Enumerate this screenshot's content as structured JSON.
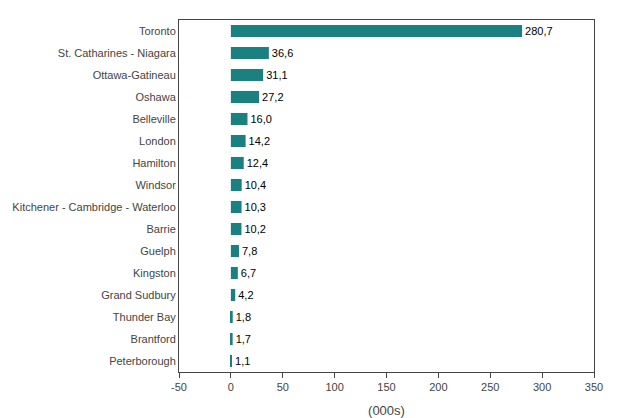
{
  "chart_data": {
    "type": "bar",
    "orientation": "horizontal",
    "categories": [
      "Toronto",
      "St. Catharines - Niagara",
      "Ottawa-Gatineau",
      "Oshawa",
      "Belleville",
      "London",
      "Hamilton",
      "Windsor",
      "Kitchener - Cambridge - Waterloo",
      "Barrie",
      "Guelph",
      "Kingston",
      "Grand Sudbury",
      "Thunder Bay",
      "Brantford",
      "Peterborough"
    ],
    "values": [
      280.7,
      36.6,
      31.1,
      27.2,
      16.0,
      14.2,
      12.4,
      10.4,
      10.3,
      10.2,
      7.8,
      6.7,
      4.2,
      1.8,
      1.7,
      1.1
    ],
    "value_labels": [
      "280,7",
      "36,6",
      "31,1",
      "27,2",
      "16,0",
      "14,2",
      "12,4",
      "10,4",
      "10,3",
      "10,2",
      "7,8",
      "6,7",
      "4,2",
      "1,8",
      "1,7",
      "1,1"
    ],
    "data_labels": true,
    "color": "#1a8080",
    "xlabel": "(000s)",
    "xlim": [
      -50,
      350
    ],
    "xticks": [
      -50,
      0,
      50,
      100,
      150,
      200,
      250,
      300,
      350
    ],
    "grid": false
  }
}
